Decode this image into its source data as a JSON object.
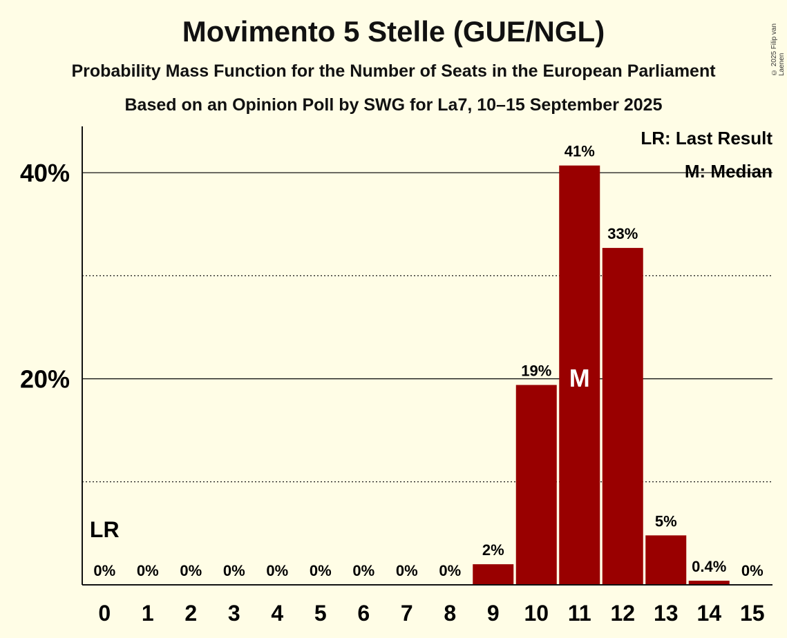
{
  "copyright": "© 2025 Filip van Laenen",
  "chart_data": {
    "type": "bar",
    "title": "Movimento 5 Stelle (GUE/NGL)",
    "subtitle": "Probability Mass Function for the Number of Seats in the European Parliament",
    "subtitle2": "Based on an Opinion Poll by SWG for La7, 10–15 September 2025",
    "xlabel": "",
    "ylabel": "",
    "categories": [
      "0",
      "1",
      "2",
      "3",
      "4",
      "5",
      "6",
      "7",
      "8",
      "9",
      "10",
      "11",
      "12",
      "13",
      "14",
      "15"
    ],
    "values": [
      0,
      0,
      0,
      0,
      0,
      0,
      0,
      0,
      0,
      2,
      19.4,
      40.7,
      32.7,
      4.8,
      0.4,
      0
    ],
    "value_labels": [
      "0%",
      "0%",
      "0%",
      "0%",
      "0%",
      "0%",
      "0%",
      "0%",
      "0%",
      "2%",
      "19%",
      "41%",
      "33%",
      "5%",
      "0.4%",
      "0%"
    ],
    "ylim": [
      0,
      44.5
    ],
    "y_ticks": [
      20,
      40
    ],
    "y_tick_labels": [
      "20%",
      "40%"
    ],
    "y_minor_gridlines": [
      10,
      30
    ],
    "bar_color": "#990000",
    "last_result_seat": "0",
    "last_result_marker": "LR",
    "median_seat": "11",
    "median_marker": "M",
    "legend": [
      "LR: Last Result",
      "M: Median"
    ],
    "legend_position": "top-right"
  }
}
